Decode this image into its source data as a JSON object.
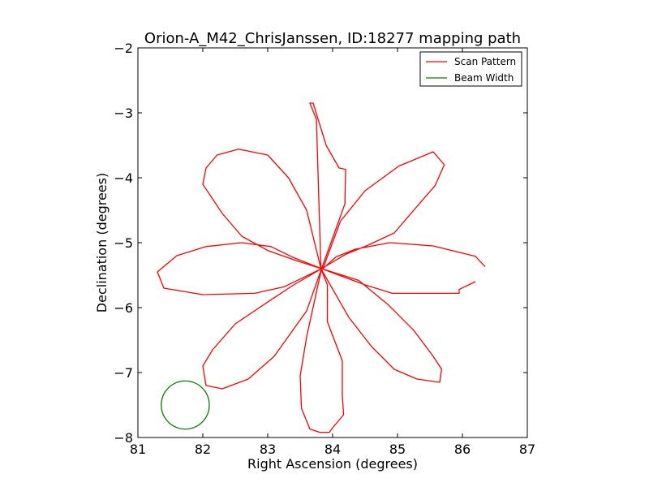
{
  "chart_data": {
    "type": "line",
    "title": "Orion-A_M42_ChrisJanssen, ID:18277 mapping path",
    "xlabel": "Right Ascension (degrees)",
    "ylabel": "Declination (degrees)",
    "xlim": [
      81,
      87
    ],
    "ylim": [
      -8,
      -2
    ],
    "y_inverted": false,
    "xticks": [
      81,
      82,
      83,
      84,
      85,
      86,
      87
    ],
    "yticks": [
      -2,
      -3,
      -4,
      -5,
      -6,
      -7,
      -8
    ],
    "xtick_labels": [
      "81",
      "82",
      "83",
      "84",
      "85",
      "86",
      "87"
    ],
    "ytick_labels": [
      "−2",
      "−3",
      "−4",
      "−5",
      "−6",
      "−7",
      "−8"
    ],
    "grid": false,
    "legend_position": "top-right",
    "series": [
      {
        "name": "Scan Pattern",
        "color": "#ff0000",
        "x": [
          86.35,
          86.2,
          85.55,
          84.88,
          84.35,
          84.05,
          83.85,
          84.12,
          84.5,
          85.02,
          85.55,
          85.72,
          85.58,
          85.25,
          84.95,
          84.52,
          84.2,
          83.83,
          84.19,
          84.2,
          84.1,
          83.9,
          83.7,
          83.65,
          83.75,
          83.82,
          83.6,
          83.32,
          83.0,
          82.55,
          82.22,
          82.05,
          82.0,
          82.3,
          82.6,
          83.0,
          83.45,
          83.83,
          83.4,
          83.05,
          82.6,
          82.05,
          81.6,
          81.3,
          81.4,
          82.0,
          82.8,
          83.25,
          83.83,
          83.4,
          83.05,
          82.5,
          82.15,
          82.0,
          82.05,
          82.3,
          82.7,
          83.1,
          83.6,
          83.83,
          83.6,
          83.5,
          83.52,
          83.65,
          83.8,
          83.95,
          84.0,
          84.17,
          84.15,
          84.15,
          83.92,
          83.92,
          83.82,
          84.25,
          84.6,
          84.95,
          85.3,
          85.65,
          85.68,
          85.55,
          85.25,
          84.85,
          84.4,
          83.83,
          84.5,
          84.92,
          85.95,
          85.95,
          86.2
        ],
        "y": [
          -5.37,
          -5.21,
          -5.05,
          -5.0,
          -5.1,
          -5.22,
          -5.4,
          -4.67,
          -4.2,
          -3.82,
          -3.6,
          -3.8,
          -4.12,
          -4.5,
          -4.85,
          -5.05,
          -5.18,
          -5.4,
          -4.4,
          -3.87,
          -3.85,
          -3.5,
          -2.85,
          -2.85,
          -3.1,
          -5.4,
          -4.5,
          -4.0,
          -3.65,
          -3.56,
          -3.65,
          -3.85,
          -4.1,
          -4.55,
          -4.9,
          -5.12,
          -5.28,
          -5.4,
          -5.23,
          -5.06,
          -5.0,
          -5.06,
          -5.2,
          -5.45,
          -5.7,
          -5.8,
          -5.78,
          -5.68,
          -5.4,
          -5.65,
          -5.88,
          -6.25,
          -6.65,
          -6.9,
          -7.2,
          -7.25,
          -7.1,
          -6.75,
          -6.05,
          -5.4,
          -6.45,
          -7.05,
          -7.55,
          -7.87,
          -7.92,
          -7.92,
          -7.85,
          -7.65,
          -7.37,
          -6.82,
          -6.22,
          -5.65,
          -5.4,
          -6.15,
          -6.6,
          -6.95,
          -7.1,
          -7.15,
          -6.95,
          -6.75,
          -6.35,
          -5.95,
          -5.58,
          -5.4,
          -5.65,
          -5.78,
          -5.78,
          -5.72,
          -5.6
        ]
      },
      {
        "name": "Beam Width",
        "color": "#008000",
        "shape": "circle",
        "center": [
          81.73,
          -7.5
        ],
        "radius": 0.37
      }
    ]
  }
}
